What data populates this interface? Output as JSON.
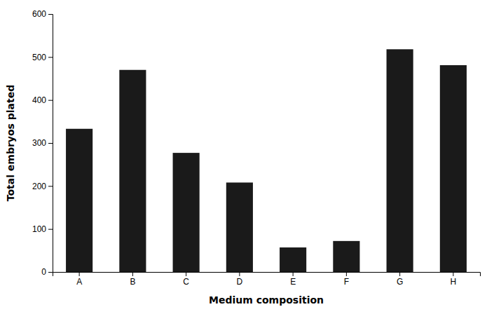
{
  "chart_data": {
    "type": "bar",
    "categories": [
      "A",
      "B",
      "C",
      "D",
      "E",
      "F",
      "G",
      "H"
    ],
    "values": [
      333,
      470,
      277,
      208,
      57,
      72,
      518,
      481
    ],
    "color": "#1a1a1a",
    "xlabel": "Medium composition",
    "ylabel": "Total embryos plated",
    "ylim": [
      0,
      600
    ],
    "yticks": [
      0,
      100,
      200,
      300,
      400,
      500,
      600
    ],
    "grid": false
  }
}
